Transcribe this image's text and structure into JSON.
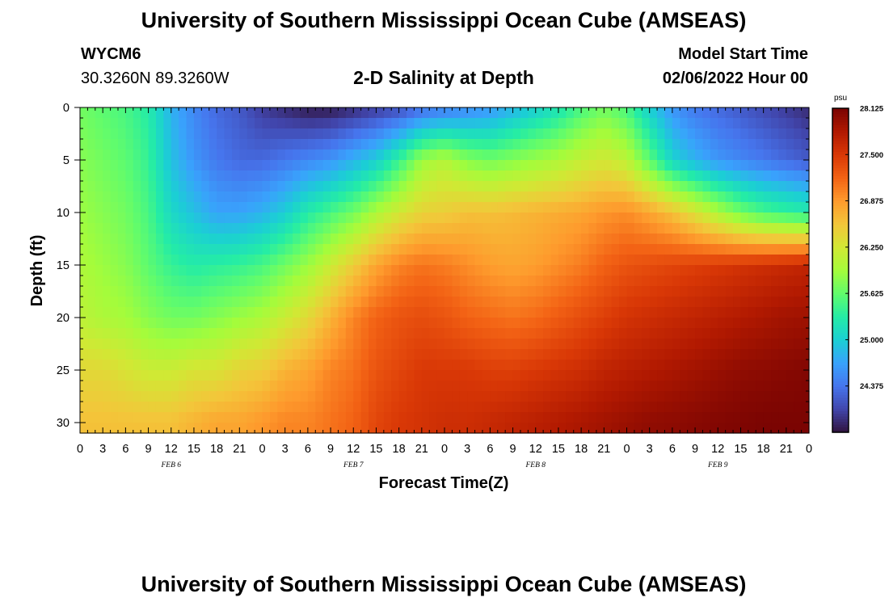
{
  "header": {
    "title": "University of Southern Mississippi Ocean Cube (AMSEAS)",
    "station": "WYCM6",
    "coordinates": "30.3260N  89.3260W",
    "subtitle": "2-D Salinity at Depth",
    "model_start_label": "Model Start Time",
    "model_start_value": "02/06/2022 Hour 00"
  },
  "footer": {
    "title": "University of Southern Mississippi Ocean Cube (AMSEAS)"
  },
  "chart_data": {
    "type": "heatmap",
    "title": "2-D Salinity at Depth",
    "xlabel": "Forecast Time(Z)",
    "ylabel": "Depth (ft)",
    "x_range_hours": [
      0,
      96
    ],
    "y_range_ft": [
      0,
      31
    ],
    "x_tick_labels": [
      "0",
      "3",
      "6",
      "9",
      "12",
      "15",
      "18",
      "21",
      "0",
      "3",
      "6",
      "9",
      "12",
      "15",
      "18",
      "21",
      "0",
      "3",
      "6",
      "9",
      "12",
      "15",
      "18",
      "21",
      "0",
      "3",
      "6",
      "9",
      "12",
      "15",
      "18",
      "21",
      "0"
    ],
    "y_ticks": [
      0,
      5,
      10,
      15,
      20,
      25,
      30
    ],
    "day_labels": [
      {
        "label": "FEB 6",
        "hour": 12
      },
      {
        "label": "FEB 7",
        "hour": 36
      },
      {
        "label": "FEB 8",
        "hour": 60
      },
      {
        "label": "FEB 9",
        "hour": 84
      }
    ],
    "colorbar": {
      "unit": "psu",
      "min": 23.75,
      "max": 28.125,
      "tick_labels": [
        "28.125",
        "27.500",
        "26.875",
        "26.250",
        "25.625",
        "25.000",
        "24.375"
      ],
      "tick_values": [
        28.125,
        27.5,
        26.875,
        26.25,
        25.625,
        25.0,
        24.375
      ]
    },
    "colors": {
      "stops": [
        "#30123b",
        "#4145ab",
        "#4675ed",
        "#39a2fc",
        "#1bcfd4",
        "#24eca6",
        "#61fc6c",
        "#a4fc3b",
        "#d1e834",
        "#f3c63a",
        "#fe9b2d",
        "#f36315",
        "#d93806",
        "#b11901",
        "#7a0402"
      ]
    },
    "profile_hours": [
      0,
      3,
      6,
      9,
      12,
      15,
      18,
      21,
      24,
      27,
      30,
      33,
      36,
      39,
      42,
      45,
      48,
      51,
      54,
      57,
      60,
      63,
      66,
      69,
      72,
      75,
      78,
      81,
      84,
      87,
      90,
      93,
      96
    ],
    "profile_depths_ft": [
      0,
      5,
      10,
      15,
      20,
      25,
      30
    ],
    "salinity_psu": [
      [
        25.7,
        25.8,
        25.9,
        26.0,
        26.1,
        26.4,
        26.6
      ],
      [
        25.6,
        25.7,
        25.8,
        25.9,
        26.0,
        26.4,
        26.6
      ],
      [
        25.5,
        25.6,
        25.7,
        25.8,
        25.95,
        26.3,
        26.6
      ],
      [
        25.3,
        25.4,
        25.5,
        25.6,
        25.8,
        26.2,
        26.6
      ],
      [
        24.8,
        24.9,
        25.1,
        25.4,
        25.7,
        26.2,
        26.6
      ],
      [
        24.5,
        24.6,
        24.9,
        25.3,
        25.7,
        26.3,
        26.7
      ],
      [
        24.3,
        24.4,
        24.7,
        25.35,
        25.8,
        26.3,
        26.8
      ],
      [
        24.2,
        24.3,
        24.7,
        25.4,
        25.9,
        26.45,
        26.8
      ],
      [
        24.0,
        24.3,
        24.8,
        25.5,
        26.0,
        26.5,
        26.9
      ],
      [
        23.9,
        24.4,
        25.0,
        25.7,
        26.2,
        26.7,
        27.0
      ],
      [
        23.8,
        24.5,
        25.3,
        25.9,
        26.4,
        26.8,
        27.0
      ],
      [
        23.8,
        24.6,
        25.5,
        26.2,
        26.7,
        27.0,
        27.1
      ],
      [
        23.9,
        24.8,
        25.7,
        26.5,
        27.0,
        27.1,
        27.2
      ],
      [
        24.0,
        25.0,
        26.0,
        26.8,
        27.2,
        27.3,
        27.4
      ],
      [
        24.1,
        25.4,
        26.25,
        27.0,
        27.3,
        27.4,
        27.5
      ],
      [
        24.3,
        25.9,
        26.45,
        27.1,
        27.35,
        27.5,
        27.55
      ],
      [
        24.4,
        26.05,
        26.5,
        27.05,
        27.3,
        27.5,
        27.6
      ],
      [
        24.5,
        25.8,
        26.6,
        26.95,
        27.2,
        27.5,
        27.6
      ],
      [
        24.6,
        25.7,
        26.6,
        26.85,
        27.15,
        27.45,
        27.65
      ],
      [
        24.8,
        25.8,
        26.65,
        26.8,
        27.1,
        27.45,
        27.7
      ],
      [
        25.0,
        25.9,
        26.7,
        26.85,
        27.15,
        27.5,
        27.75
      ],
      [
        25.2,
        26.0,
        26.75,
        26.95,
        27.25,
        27.55,
        27.8
      ],
      [
        25.5,
        26.15,
        26.8,
        27.05,
        27.35,
        27.6,
        27.85
      ],
      [
        25.7,
        26.25,
        26.9,
        27.2,
        27.45,
        27.7,
        27.9
      ],
      [
        25.5,
        26.1,
        26.95,
        27.3,
        27.55,
        27.75,
        27.95
      ],
      [
        25.0,
        25.6,
        26.8,
        27.35,
        27.6,
        27.8,
        28.0
      ],
      [
        24.6,
        25.05,
        26.6,
        27.4,
        27.65,
        27.85,
        28.02
      ],
      [
        24.4,
        24.8,
        26.3,
        27.45,
        27.7,
        27.9,
        28.05
      ],
      [
        24.3,
        24.6,
        26.0,
        27.5,
        27.75,
        27.95,
        28.08
      ],
      [
        24.2,
        24.5,
        25.7,
        27.55,
        27.8,
        28.0,
        28.1
      ],
      [
        24.1,
        24.4,
        25.5,
        27.6,
        27.85,
        28.02,
        28.12
      ],
      [
        24.0,
        24.3,
        25.4,
        27.65,
        27.9,
        28.05,
        28.12
      ],
      [
        23.9,
        24.2,
        25.3,
        27.7,
        27.92,
        28.08,
        28.12
      ]
    ]
  }
}
